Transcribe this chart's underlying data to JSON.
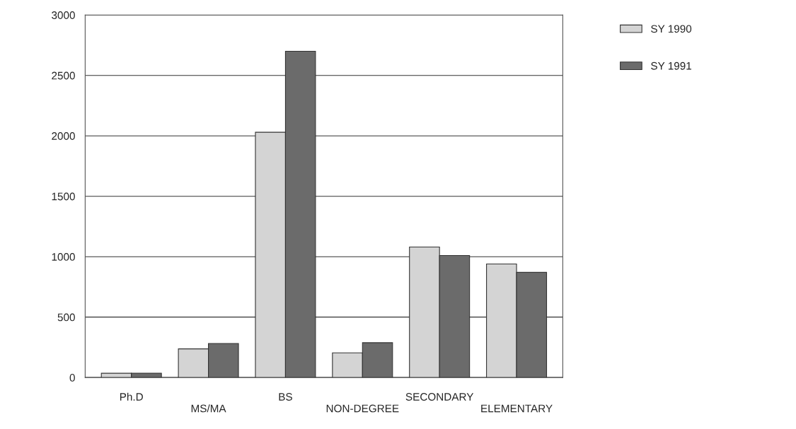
{
  "chart_data": {
    "type": "bar",
    "categories": [
      "Ph.D",
      "MS/MA",
      "BS",
      "NON-DEGREE",
      "SECONDARY",
      "ELEMENTARY"
    ],
    "series": [
      {
        "name": "SY 1990",
        "color": "#d4d4d4",
        "values": [
          35,
          237,
          2030,
          204,
          1080,
          940
        ]
      },
      {
        "name": "SY 1991",
        "color": "#6b6b6b",
        "values": [
          35,
          282,
          2700,
          288,
          1010,
          870
        ]
      }
    ],
    "ylim": [
      0,
      3000
    ],
    "yticks": [
      0,
      500,
      1000,
      1500,
      2000,
      2500,
      3000
    ],
    "grid": "y",
    "legend": "top right"
  }
}
